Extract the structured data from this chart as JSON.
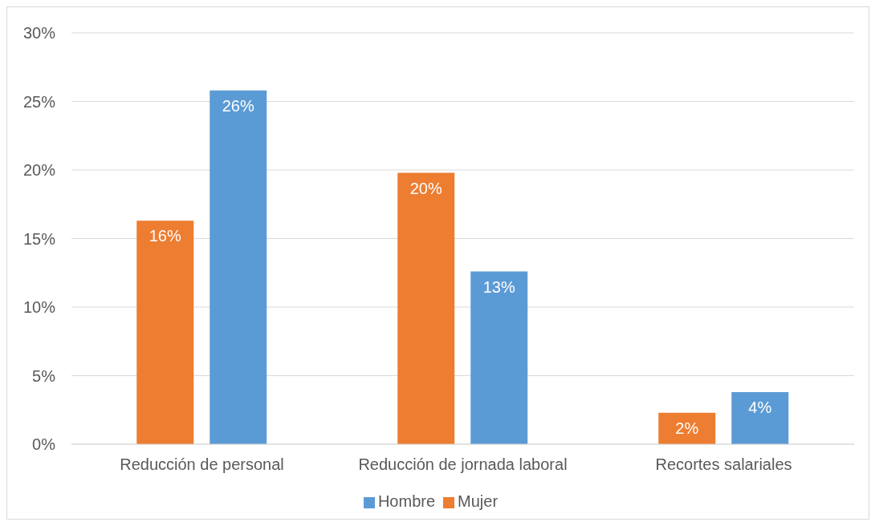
{
  "chart_data": {
    "type": "bar",
    "categories": [
      "Reducción de personal",
      "Reducción de jornada laboral",
      "Recortes salariales"
    ],
    "series": [
      {
        "name": "Mujer",
        "color": "#ed7d31",
        "values": [
          16.3,
          19.8,
          2.3
        ],
        "value_labels": [
          "16%",
          "20%",
          "2%"
        ]
      },
      {
        "name": "Hombre",
        "color": "#5b9bd5",
        "values": [
          25.8,
          12.6,
          3.8
        ],
        "value_labels": [
          "26%",
          "13%",
          "4%"
        ]
      }
    ],
    "ylim": [
      0,
      30
    ],
    "yticks": [
      {
        "value": 0,
        "label": "0%"
      },
      {
        "value": 5,
        "label": "5%"
      },
      {
        "value": 10,
        "label": "10%"
      },
      {
        "value": 15,
        "label": "15%"
      },
      {
        "value": 20,
        "label": "20%"
      },
      {
        "value": 25,
        "label": "25%"
      },
      {
        "value": 30,
        "label": "30%"
      }
    ],
    "grid": "y",
    "legend": "bottom"
  }
}
